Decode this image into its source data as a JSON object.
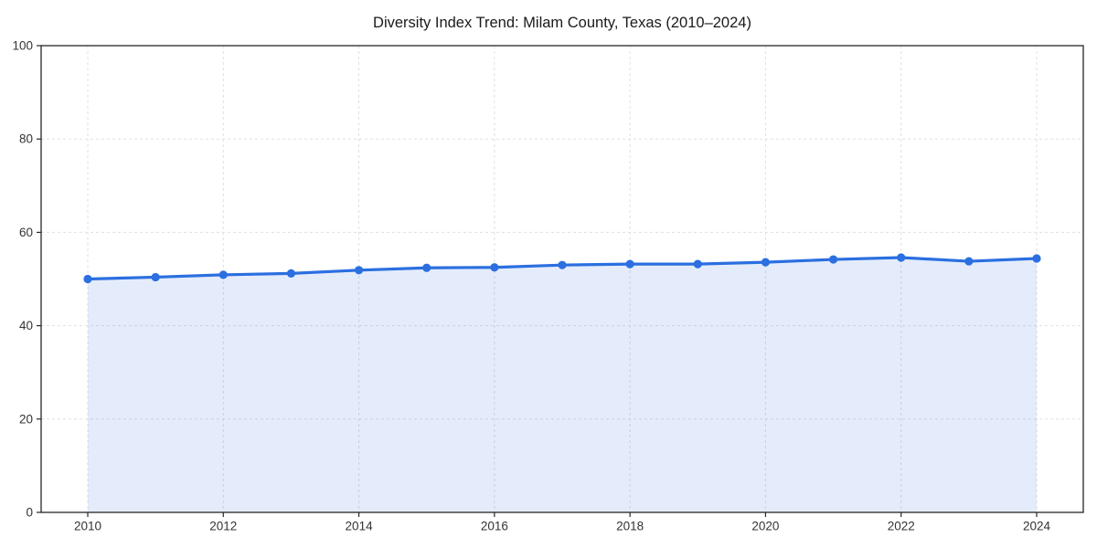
{
  "page": {
    "title": "Diversity Index Trend: Milam County, Texas (2010–2024)"
  },
  "chart_data": {
    "type": "area",
    "title": "Diversity Index Trend: Milam County, Texas (2010–2024)",
    "x": [
      2010,
      2011,
      2012,
      2013,
      2014,
      2015,
      2016,
      2017,
      2018,
      2019,
      2020,
      2021,
      2022,
      2023,
      2024
    ],
    "series": [
      {
        "name": "Diversity Index",
        "values": [
          50.0,
          50.4,
          50.9,
          51.2,
          51.9,
          52.4,
          52.5,
          53.0,
          53.2,
          53.2,
          53.6,
          54.2,
          54.6,
          53.8,
          54.4
        ]
      }
    ],
    "xlabel": "",
    "ylabel": "",
    "ylim": [
      0,
      100
    ],
    "yticks": [
      0,
      20,
      40,
      60,
      80,
      100
    ],
    "xticks": [
      2010,
      2012,
      2014,
      2016,
      2018,
      2020,
      2022,
      2024
    ],
    "grid": true,
    "grid_style": "dashed",
    "legend": false,
    "marker": "circle",
    "colors": {
      "line": "#2b6fe0",
      "marker": "#2b6fe0",
      "fill": "rgba(43, 111, 224, 0.13)",
      "grid": "#e0e0e0",
      "axis": "#262626",
      "tick_label": "#333333",
      "title": "#1a1a1a",
      "background": "#ffffff"
    }
  }
}
